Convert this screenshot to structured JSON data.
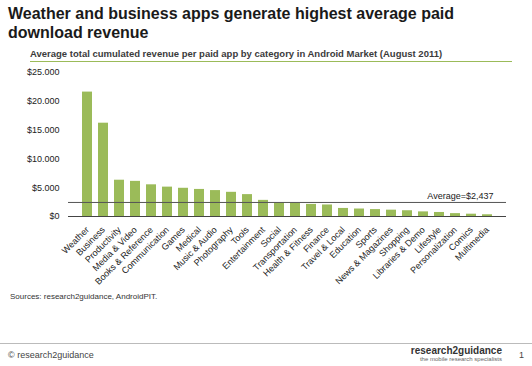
{
  "chart_data": {
    "type": "bar",
    "title": "Weather and business apps generate highest average paid download revenue",
    "subtitle": "Average total cumulated revenue per paid app by category in Android Market (August 2011)",
    "categories": [
      "Weather",
      "Business",
      "Productivity",
      "Media & Video",
      "Books & Reference",
      "Communication",
      "Games",
      "Medical",
      "Music & Audio",
      "Photography",
      "Tools",
      "Entertainment",
      "Social",
      "Transportation",
      "Health & Fitness",
      "Finance",
      "Travel & Local",
      "Education",
      "Sports",
      "News & Magazines",
      "Shopping",
      "Libraries & Demo",
      "Lifestyle",
      "Personalization",
      "Comics",
      "Multimedia"
    ],
    "values": [
      21600,
      16200,
      6300,
      6100,
      5500,
      5100,
      4900,
      4700,
      4500,
      4200,
      3800,
      2800,
      2400,
      2300,
      2100,
      2000,
      1400,
      1300,
      1200,
      1100,
      1000,
      800,
      700,
      500,
      400,
      300
    ],
    "color": "#9bbb59",
    "ylim": [
      0,
      25000
    ],
    "yticks": [
      {
        "value": 0,
        "label": "$0"
      },
      {
        "value": 5000,
        "label": "$5.000"
      },
      {
        "value": 10000,
        "label": "$10.000"
      },
      {
        "value": 15000,
        "label": "$15.000"
      },
      {
        "value": 20000,
        "label": "$20.000"
      },
      {
        "value": 25000,
        "label": "$25.000"
      }
    ],
    "grid": false,
    "annotations": [
      {
        "y": 2437,
        "text": "Average=$2,437"
      }
    ],
    "source": "Sources:  research2guidance, AndroidPIT.",
    "footer": {
      "copyright": "© research2guidance",
      "logo": "research2guidance",
      "tagline": "the mobile research specialists",
      "page": "1"
    }
  }
}
